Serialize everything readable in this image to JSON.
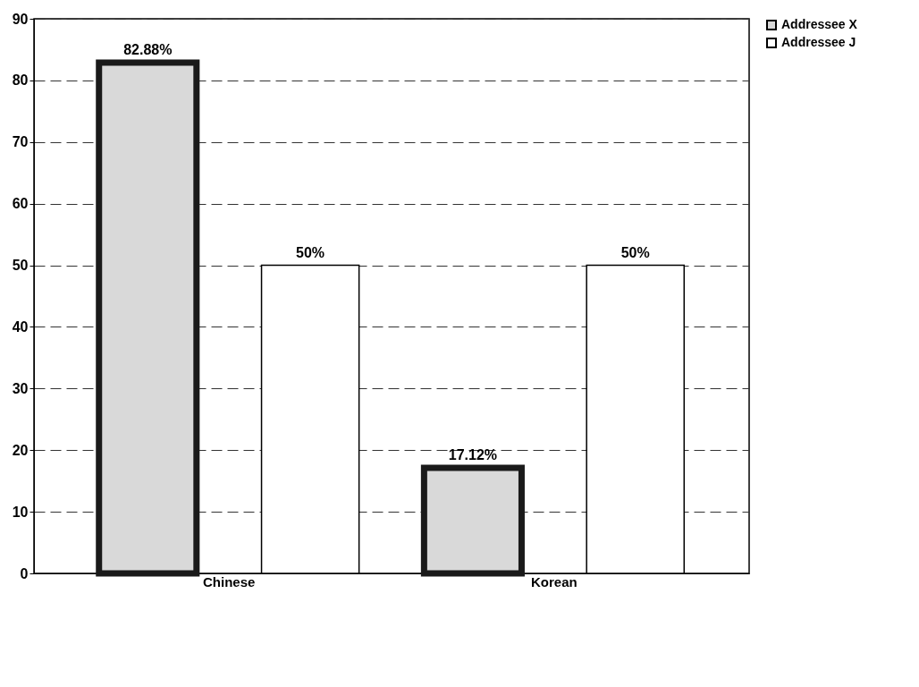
{
  "chart_data": {
    "type": "bar",
    "categories": [
      "Chinese",
      "Korean"
    ],
    "series": [
      {
        "name": "Addressee X",
        "color": "#d9d9d9",
        "values": [
          82.88,
          17.12
        ],
        "value_labels": [
          "82.88%",
          "17.12%"
        ]
      },
      {
        "name": "Addressee J",
        "color": "#ffffff",
        "values": [
          50,
          50
        ],
        "value_labels": [
          "50%",
          "50%"
        ]
      }
    ],
    "ylim": [
      0,
      90
    ],
    "yticks": [
      0,
      10,
      20,
      30,
      40,
      50,
      60,
      70,
      80,
      90
    ],
    "grid": "y",
    "legend": "right"
  }
}
